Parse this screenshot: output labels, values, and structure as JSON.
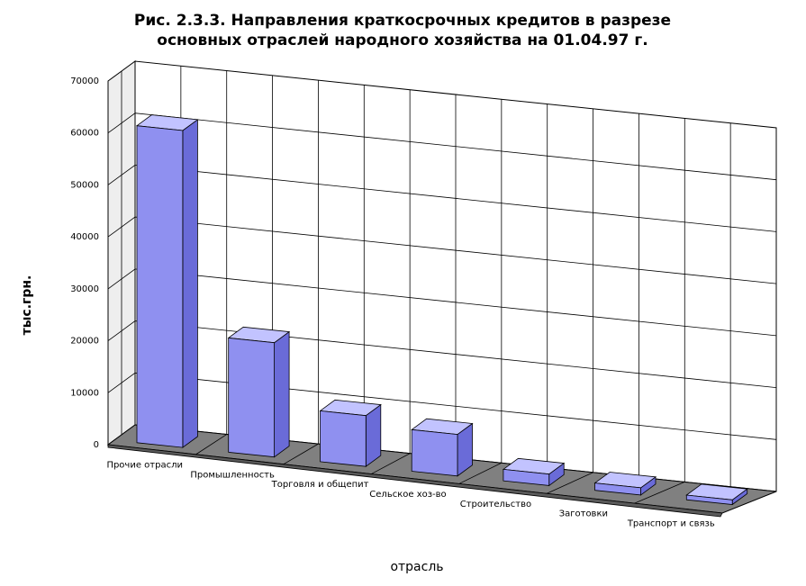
{
  "chart_data": {
    "type": "bar",
    "title_lines": [
      "Рис. 2.3.3. Направления краткосрочных кредитов в разрезе",
      "основных отраслей народного хозяйства на 01.04.97 г."
    ],
    "xlabel": "отрасль",
    "ylabel": "тыс.грн.",
    "categories": [
      "Прочие отрасли",
      "Промышленность",
      "Торговля и общепит",
      "Сельское хоз-во",
      "Строительство",
      "Заготовки",
      "Транспорт и связь"
    ],
    "values": [
      61000,
      22000,
      9800,
      8000,
      2200,
      1400,
      900
    ],
    "ylim": [
      0,
      70000
    ],
    "yticks": [
      "0",
      "10000",
      "20000",
      "30000",
      "40000",
      "50000",
      "60000",
      "70000"
    ],
    "grid": true,
    "legend": "none",
    "colors": {
      "bar_front": "#8f90f0",
      "bar_top": "#c2c3ff",
      "bar_side": "#6a6bd8",
      "floor": "#808080",
      "wall": "#ffffff",
      "side_wall": "#eeeeee"
    }
  }
}
